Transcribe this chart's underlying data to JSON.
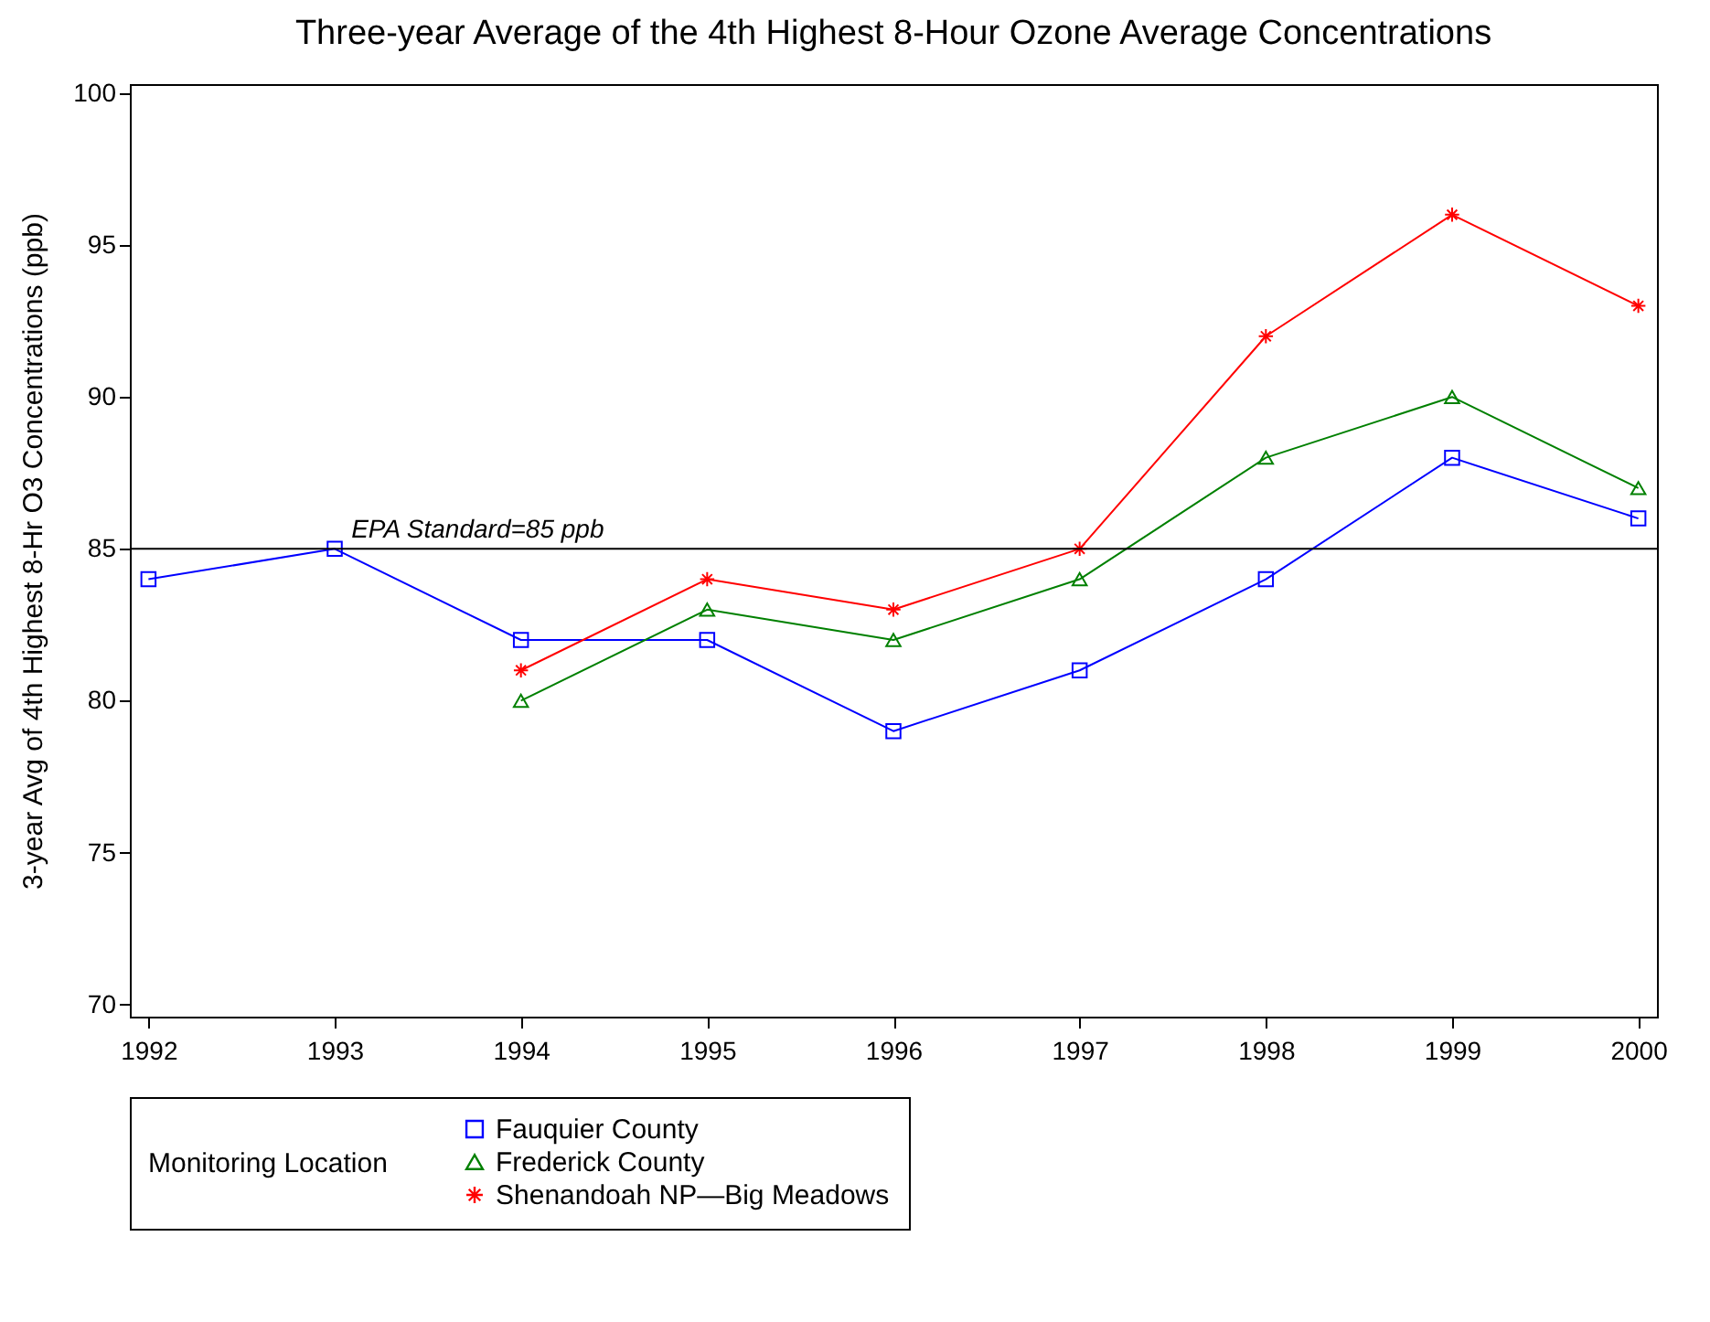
{
  "chart_data": {
    "type": "line",
    "title": "Three-year Average of the 4th Highest 8-Hour Ozone Average Concentrations",
    "ylabel": "3-year Avg of 4th Highest 8-Hr O3 Concentrations (ppb)",
    "legend_title": "Monitoring Location",
    "x": [
      1992,
      1993,
      1994,
      1995,
      1996,
      1997,
      1998,
      1999,
      2000
    ],
    "series": [
      {
        "name": "Fauquier County",
        "color": "#0000ff",
        "marker": "square",
        "values": [
          84,
          85,
          82,
          82,
          79,
          81,
          84,
          88,
          86
        ]
      },
      {
        "name": "Frederick County",
        "color": "#008000",
        "marker": "triangle",
        "values": [
          null,
          null,
          80,
          83,
          82,
          84,
          88,
          90,
          87
        ]
      },
      {
        "name": "Shenandoah NP—Big Meadows",
        "color": "#ff0000",
        "marker": "cross",
        "values": [
          null,
          null,
          81,
          84,
          83,
          85,
          92,
          96,
          93
        ]
      }
    ],
    "xlim": [
      1991.9,
      2000.1
    ],
    "xticks": [
      1992,
      1993,
      1994,
      1995,
      1996,
      1997,
      1998,
      1999,
      2000
    ],
    "ylim": [
      69.6,
      100.3
    ],
    "yticks": [
      70,
      75,
      80,
      85,
      90,
      95,
      100
    ],
    "ref_lines": [
      {
        "axis": "y",
        "value": 85,
        "label": "EPA Standard=85 ppb",
        "color": "#000000"
      }
    ],
    "grid": false,
    "legend": "bottom",
    "line_style": "solid"
  }
}
